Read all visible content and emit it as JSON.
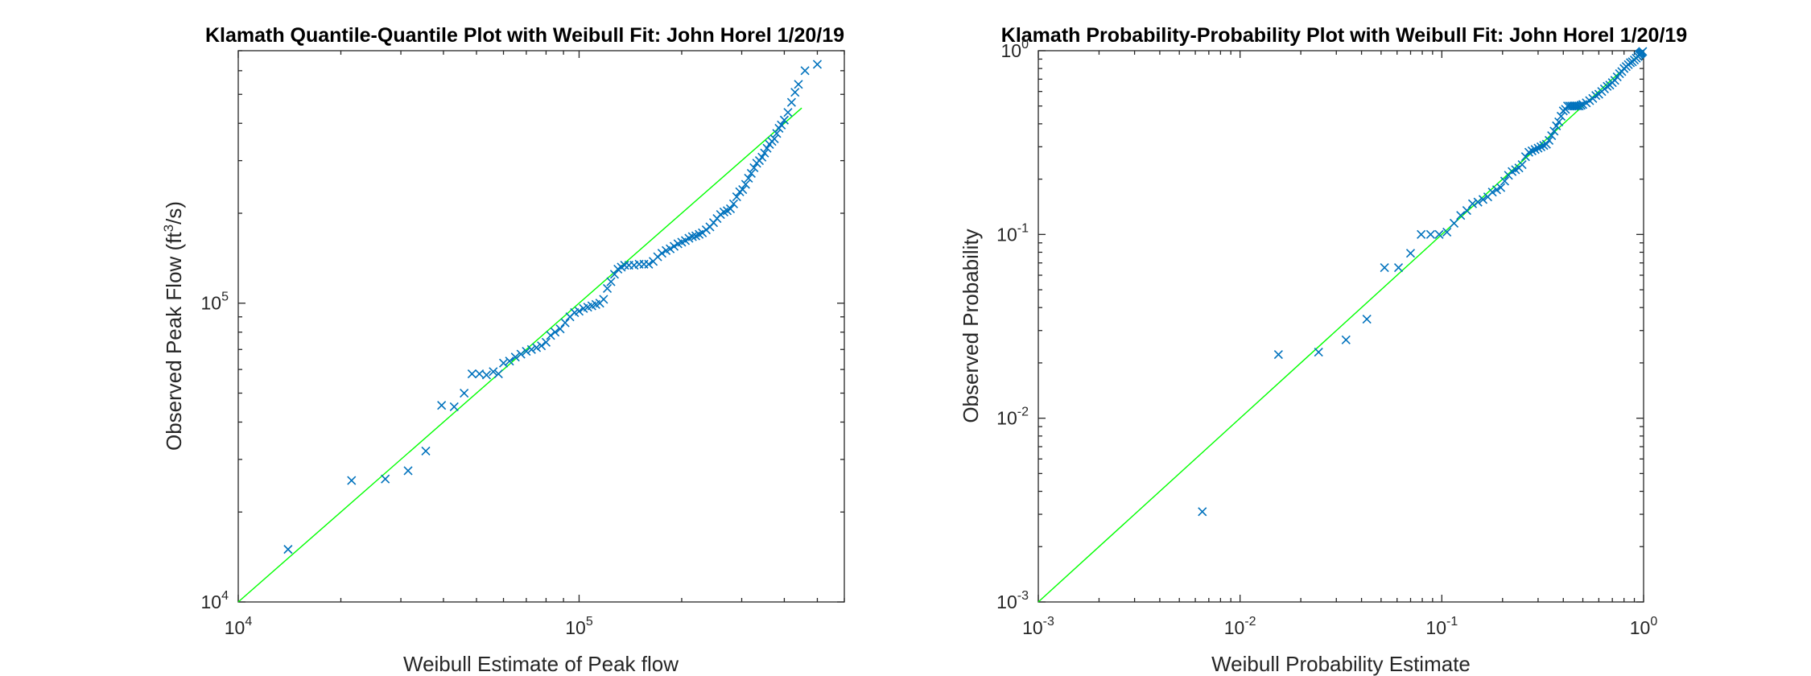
{
  "chart_data": [
    {
      "type": "scatter",
      "title": "Klamath Quantile-Quantile Plot with Weibull Fit: John Horel 1/20/19",
      "xlabel": "Weibull Estimate of Peak flow",
      "ylabel_parts": {
        "main": "Observed Peak Flow (ft",
        "sup": "3",
        "end": "/s)"
      },
      "xscale": "log",
      "yscale": "log",
      "xlim": [
        10000,
        600000
      ],
      "ylim": [
        10000,
        700000
      ],
      "xticks": [
        {
          "base": "10",
          "exp": "4",
          "value": 10000
        },
        {
          "base": "10",
          "exp": "5",
          "value": 100000
        }
      ],
      "yticks": [
        {
          "base": "10",
          "exp": "4",
          "value": 10000
        },
        {
          "base": "10",
          "exp": "5",
          "value": 100000
        }
      ],
      "fit_line": {
        "x": [
          10000,
          450000
        ],
        "y": [
          10000,
          450000
        ],
        "color": "#00ff00"
      },
      "marker_color": "#0072bd",
      "points": [
        [
          14000,
          15000
        ],
        [
          21500,
          25500
        ],
        [
          27000,
          25800
        ],
        [
          31500,
          27500
        ],
        [
          35500,
          32000
        ],
        [
          39500,
          45500
        ],
        [
          43000,
          45000
        ],
        [
          46000,
          50000
        ],
        [
          48500,
          58000
        ],
        [
          51000,
          58000
        ],
        [
          53500,
          57500
        ],
        [
          56000,
          59000
        ],
        [
          58000,
          58000
        ],
        [
          60000,
          63000
        ],
        [
          62500,
          64000
        ],
        [
          65000,
          66000
        ],
        [
          67500,
          67500
        ],
        [
          70000,
          69000
        ],
        [
          72500,
          70000
        ],
        [
          75000,
          71000
        ],
        [
          77500,
          72000
        ],
        [
          80000,
          74000
        ],
        [
          82500,
          78000
        ],
        [
          85000,
          80000
        ],
        [
          88000,
          82000
        ],
        [
          91000,
          86000
        ],
        [
          94000,
          90000
        ],
        [
          97000,
          93000
        ],
        [
          100000,
          94000
        ],
        [
          103000,
          96000
        ],
        [
          106000,
          97000
        ],
        [
          109000,
          98000
        ],
        [
          112000,
          99000
        ],
        [
          115000,
          100000
        ],
        [
          118000,
          103000
        ],
        [
          121000,
          112000
        ],
        [
          124000,
          118000
        ],
        [
          127000,
          125000
        ],
        [
          130000,
          130000
        ],
        [
          133000,
          132000
        ],
        [
          136000,
          134000
        ],
        [
          140000,
          134000
        ],
        [
          145000,
          134000
        ],
        [
          150000,
          135000
        ],
        [
          155000,
          135000
        ],
        [
          160000,
          135000
        ],
        [
          165000,
          138000
        ],
        [
          170000,
          143000
        ],
        [
          175000,
          147000
        ],
        [
          180000,
          150000
        ],
        [
          185000,
          152000
        ],
        [
          190000,
          155000
        ],
        [
          195000,
          158000
        ],
        [
          200000,
          160000
        ],
        [
          205000,
          162000
        ],
        [
          210000,
          165000
        ],
        [
          215000,
          167000
        ],
        [
          220000,
          168000
        ],
        [
          225000,
          170000
        ],
        [
          230000,
          172000
        ],
        [
          236000,
          176000
        ],
        [
          242000,
          180000
        ],
        [
          248000,
          186000
        ],
        [
          254000,
          192000
        ],
        [
          260000,
          198000
        ],
        [
          266000,
          202000
        ],
        [
          272000,
          204000
        ],
        [
          278000,
          207000
        ],
        [
          284000,
          215000
        ],
        [
          290000,
          227000
        ],
        [
          296000,
          236000
        ],
        [
          302000,
          240000
        ],
        [
          308000,
          250000
        ],
        [
          314000,
          262000
        ],
        [
          320000,
          272000
        ],
        [
          326000,
          284000
        ],
        [
          332000,
          294000
        ],
        [
          338000,
          300000
        ],
        [
          344000,
          308000
        ],
        [
          350000,
          318000
        ],
        [
          356000,
          330000
        ],
        [
          362000,
          340000
        ],
        [
          368000,
          348000
        ],
        [
          374000,
          355000
        ],
        [
          380000,
          370000
        ],
        [
          386000,
          385000
        ],
        [
          392000,
          395000
        ],
        [
          400000,
          410000
        ],
        [
          410000,
          435000
        ],
        [
          420000,
          470000
        ],
        [
          430000,
          508000
        ],
        [
          440000,
          540000
        ],
        [
          460000,
          600000
        ],
        [
          500000,
          630000
        ]
      ]
    },
    {
      "type": "scatter",
      "title": "Klamath Probability-Probability Plot with Weibull Fit: John Horel 1/20/19",
      "xlabel": "Weibull Probability Estimate",
      "ylabel": "Observed Probability",
      "xscale": "log",
      "yscale": "log",
      "xlim": [
        0.001,
        1
      ],
      "ylim": [
        0.001,
        1
      ],
      "xticks": [
        {
          "base": "10",
          "exp": "-3",
          "value": 0.001
        },
        {
          "base": "10",
          "exp": "-2",
          "value": 0.01
        },
        {
          "base": "10",
          "exp": "-1",
          "value": 0.1
        },
        {
          "base": "10",
          "exp": "0",
          "value": 1
        }
      ],
      "yticks": [
        {
          "base": "10",
          "exp": "-3",
          "value": 0.001
        },
        {
          "base": "10",
          "exp": "-2",
          "value": 0.01
        },
        {
          "base": "10",
          "exp": "-1",
          "value": 0.1
        },
        {
          "base": "10",
          "exp": "0",
          "value": 1
        }
      ],
      "fit_line": {
        "x": [
          0.001,
          1
        ],
        "y": [
          0.001,
          1
        ],
        "color": "#00ff00"
      },
      "marker_color": "#0072bd",
      "points": [
        [
          0.0065,
          0.0031
        ],
        [
          0.0155,
          0.0222
        ],
        [
          0.0245,
          0.0229
        ],
        [
          0.0335,
          0.0267
        ],
        [
          0.0425,
          0.0346
        ],
        [
          0.052,
          0.066
        ],
        [
          0.061,
          0.066
        ],
        [
          0.07,
          0.079
        ],
        [
          0.079,
          0.1
        ],
        [
          0.088,
          0.1
        ],
        [
          0.097,
          0.1
        ],
        [
          0.106,
          0.103
        ],
        [
          0.115,
          0.115
        ],
        [
          0.124,
          0.127
        ],
        [
          0.133,
          0.135
        ],
        [
          0.142,
          0.147
        ],
        [
          0.151,
          0.15
        ],
        [
          0.16,
          0.155
        ],
        [
          0.169,
          0.16
        ],
        [
          0.178,
          0.17
        ],
        [
          0.187,
          0.175
        ],
        [
          0.196,
          0.18
        ],
        [
          0.205,
          0.195
        ],
        [
          0.214,
          0.21
        ],
        [
          0.223,
          0.22
        ],
        [
          0.232,
          0.225
        ],
        [
          0.241,
          0.23
        ],
        [
          0.25,
          0.24
        ],
        [
          0.26,
          0.265
        ],
        [
          0.27,
          0.28
        ],
        [
          0.28,
          0.285
        ],
        [
          0.29,
          0.29
        ],
        [
          0.3,
          0.295
        ],
        [
          0.31,
          0.3
        ],
        [
          0.32,
          0.305
        ],
        [
          0.33,
          0.31
        ],
        [
          0.34,
          0.325
        ],
        [
          0.35,
          0.345
        ],
        [
          0.36,
          0.365
        ],
        [
          0.37,
          0.39
        ],
        [
          0.38,
          0.41
        ],
        [
          0.39,
          0.44
        ],
        [
          0.4,
          0.47
        ],
        [
          0.41,
          0.48
        ],
        [
          0.42,
          0.5
        ],
        [
          0.43,
          0.5
        ],
        [
          0.44,
          0.5
        ],
        [
          0.45,
          0.5
        ],
        [
          0.46,
          0.5
        ],
        [
          0.47,
          0.5
        ],
        [
          0.48,
          0.5
        ],
        [
          0.49,
          0.505
        ],
        [
          0.5,
          0.51
        ],
        [
          0.52,
          0.52
        ],
        [
          0.54,
          0.535
        ],
        [
          0.56,
          0.55
        ],
        [
          0.58,
          0.57
        ],
        [
          0.6,
          0.58
        ],
        [
          0.62,
          0.6
        ],
        [
          0.64,
          0.62
        ],
        [
          0.66,
          0.64
        ],
        [
          0.68,
          0.65
        ],
        [
          0.7,
          0.67
        ],
        [
          0.72,
          0.69
        ],
        [
          0.74,
          0.72
        ],
        [
          0.76,
          0.75
        ],
        [
          0.78,
          0.77
        ],
        [
          0.8,
          0.8
        ],
        [
          0.82,
          0.82
        ],
        [
          0.84,
          0.84
        ],
        [
          0.86,
          0.86
        ],
        [
          0.88,
          0.87
        ],
        [
          0.9,
          0.89
        ],
        [
          0.92,
          0.91
        ],
        [
          0.94,
          0.93
        ],
        [
          0.95,
          0.95
        ],
        [
          0.96,
          0.96
        ],
        [
          0.97,
          0.97
        ],
        [
          0.98,
          0.98
        ],
        [
          0.99,
          0.99
        ]
      ]
    }
  ]
}
